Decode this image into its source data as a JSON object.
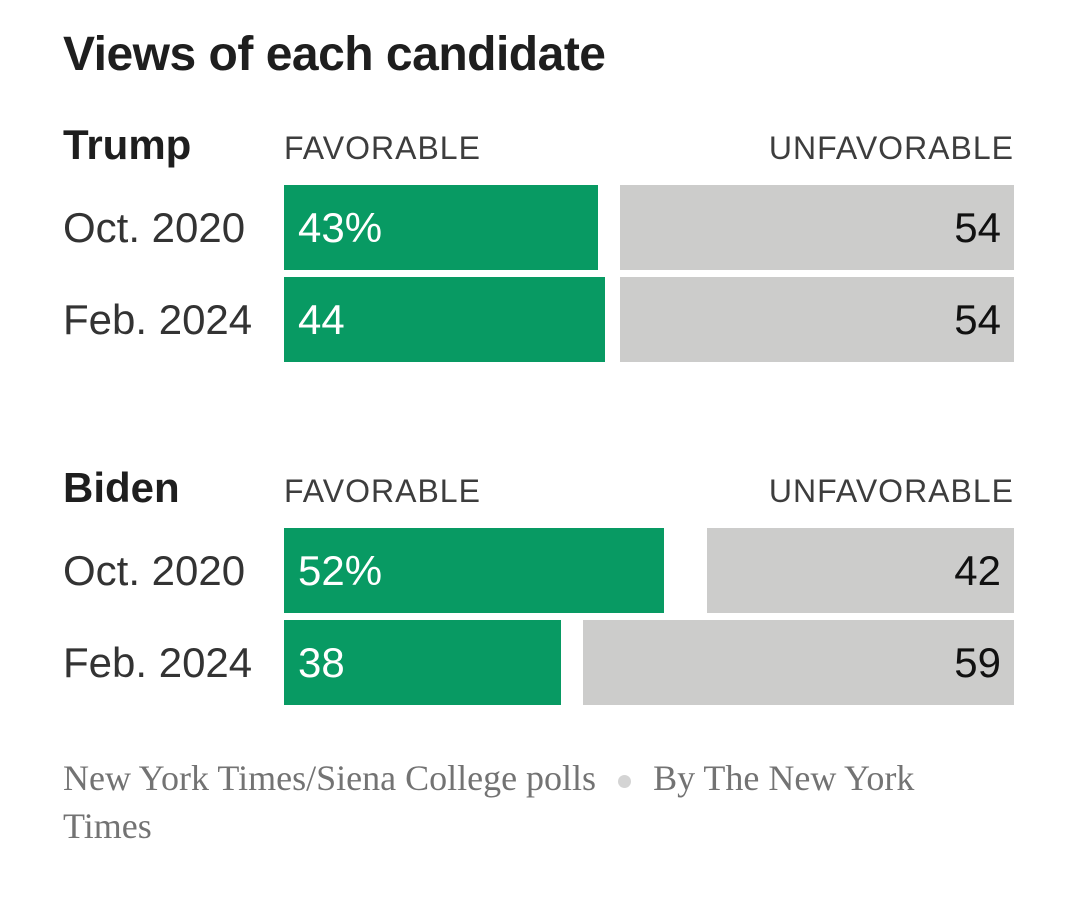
{
  "title": "Views of each candidate",
  "column_headers": {
    "favorable": "FAVORABLE",
    "unfavorable": "UNFAVORABLE"
  },
  "colors": {
    "background": "#ffffff",
    "favorable_bar": "#089a63",
    "unfavorable_bar": "#cccccb",
    "title_text": "#1e1e1e",
    "row_label_text": "#333333",
    "column_header_text": "#3d3d3d",
    "favorable_value_text": "#ffffff",
    "unfavorable_value_text": "#111111",
    "footer_text": "#737373",
    "separator_dot": "#d4d4d4"
  },
  "chart_data": {
    "type": "bar",
    "title": "Views of each candidate",
    "unit": "percent",
    "axis_range": [
      0,
      100
    ],
    "orientation": "horizontal",
    "legend_position": "column-headers-above-bars",
    "series_labels": [
      "FAVORABLE",
      "UNFAVORABLE"
    ],
    "sections": [
      {
        "candidate": "Trump",
        "rows": [
          {
            "period": "Oct. 2020",
            "favorable": 43,
            "favorable_label": "43%",
            "unfavorable": 54,
            "unfavorable_label": "54"
          },
          {
            "period": "Feb. 2024",
            "favorable": 44,
            "favorable_label": "44",
            "unfavorable": 54,
            "unfavorable_label": "54"
          }
        ]
      },
      {
        "candidate": "Biden",
        "rows": [
          {
            "period": "Oct. 2020",
            "favorable": 52,
            "favorable_label": "52%",
            "unfavorable": 42,
            "unfavorable_label": "42"
          },
          {
            "period": "Feb. 2024",
            "favorable": 38,
            "favorable_label": "38",
            "unfavorable": 59,
            "unfavorable_label": "59"
          }
        ]
      }
    ]
  },
  "footer": {
    "source": "New York Times/Siena College polls",
    "separator": "dot",
    "byline": "By The New York Times"
  }
}
